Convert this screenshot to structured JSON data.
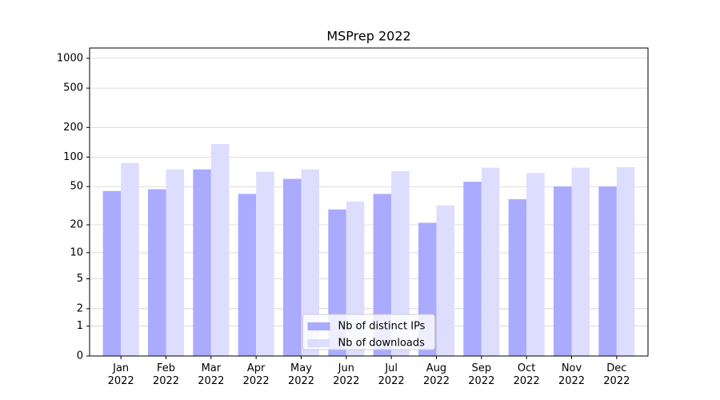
{
  "chart_data": {
    "type": "bar",
    "title": "MSPrep 2022",
    "categories": [
      "Jan 2022",
      "Feb 2022",
      "Mar 2022",
      "Apr 2022",
      "May 2022",
      "Jun 2022",
      "Jul 2022",
      "Aug 2022",
      "Sep 2022",
      "Oct 2022",
      "Nov 2022",
      "Dec 2022"
    ],
    "series": [
      {
        "name": "Nb of distinct IPs",
        "color": "#aaaaff",
        "values": [
          45,
          47,
          75,
          42,
          60,
          29,
          42,
          21,
          56,
          37,
          50,
          50
        ]
      },
      {
        "name": "Nb of downloads",
        "color": "#ddddff",
        "values": [
          87,
          75,
          136,
          71,
          75,
          35,
          72,
          32,
          78,
          69,
          78,
          79
        ]
      }
    ],
    "yscale": "log1p",
    "ylim": [
      0,
      1270
    ],
    "yticks": [
      0,
      1,
      2,
      5,
      10,
      20,
      50,
      100,
      200,
      500,
      1000
    ],
    "grid": true,
    "legend": "lower center"
  }
}
